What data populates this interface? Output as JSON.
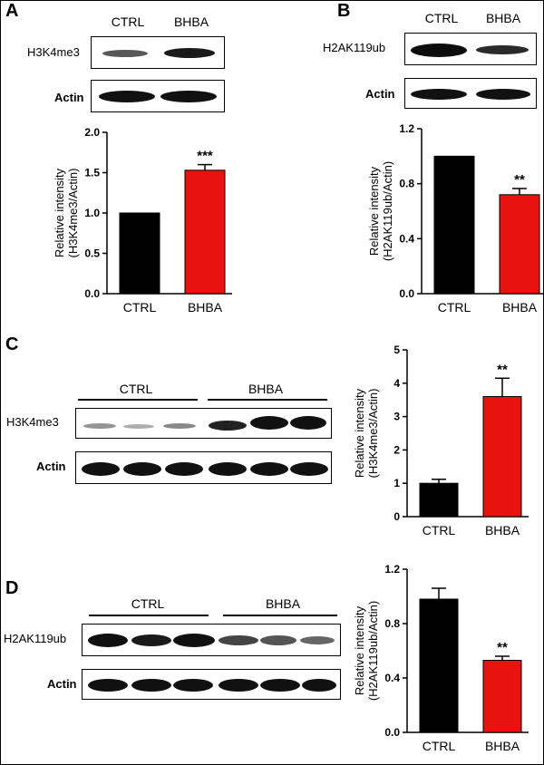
{
  "panels": {
    "A": {
      "letter": "A",
      "blot_columns": [
        "CTRL",
        "BHBA"
      ],
      "blot_labels": [
        "H3K4me3",
        "Actin"
      ]
    },
    "B": {
      "letter": "B",
      "blot_columns": [
        "CTRL",
        "BHBA"
      ],
      "blot_labels": [
        "H2AK119ub",
        "Actin"
      ]
    },
    "C": {
      "letter": "C",
      "groups": [
        "CTRL",
        "BHBA"
      ],
      "blot_labels": [
        "H3K4me3",
        "Actin"
      ]
    },
    "D": {
      "letter": "D",
      "groups": [
        "CTRL",
        "BHBA"
      ],
      "blot_labels": [
        "H2AK119ub",
        "Actin"
      ]
    }
  },
  "colors": {
    "ctrl": "#000000",
    "bhba": "#e8130f"
  },
  "chart_data": [
    {
      "id": "A",
      "type": "bar",
      "categories": [
        "CTRL",
        "BHBA"
      ],
      "values": [
        1.0,
        1.53
      ],
      "errors": [
        0,
        0.07
      ],
      "significance": [
        "",
        "***"
      ],
      "ylabel": [
        "Relative intensity",
        "(H3K4me3/Actin)"
      ],
      "ylim": [
        0,
        2.0
      ],
      "yticks": [
        "0.0",
        "0.5",
        "1.0",
        "1.5",
        "2.0"
      ]
    },
    {
      "id": "B",
      "type": "bar",
      "categories": [
        "CTRL",
        "BHBA"
      ],
      "values": [
        1.0,
        0.72
      ],
      "errors": [
        0,
        0.045
      ],
      "significance": [
        "",
        "**"
      ],
      "ylabel": [
        "Relative intensity",
        "(H2AK119ub/Actin)"
      ],
      "ylim": [
        0,
        1.2
      ],
      "yticks": [
        "0.0",
        "0.4",
        "0.8",
        "1.2"
      ]
    },
    {
      "id": "C",
      "type": "bar",
      "categories": [
        "CTRL",
        "BHBA"
      ],
      "values": [
        1.0,
        3.6
      ],
      "errors": [
        0.12,
        0.55
      ],
      "significance": [
        "",
        "**"
      ],
      "ylabel": [
        "Relative intensity",
        "(H3K4me3/Actin)"
      ],
      "ylim": [
        0,
        5
      ],
      "yticks": [
        "0",
        "1",
        "2",
        "3",
        "4",
        "5"
      ]
    },
    {
      "id": "D",
      "type": "bar",
      "categories": [
        "CTRL",
        "BHBA"
      ],
      "values": [
        0.98,
        0.53
      ],
      "errors": [
        0.08,
        0.03
      ],
      "significance": [
        "",
        "**"
      ],
      "ylabel": [
        "Relative intensity",
        "(H2AK119ub/Actin)"
      ],
      "ylim": [
        0,
        1.2
      ],
      "yticks": [
        "0.0",
        "0.4",
        "0.8",
        "1.2"
      ]
    }
  ]
}
